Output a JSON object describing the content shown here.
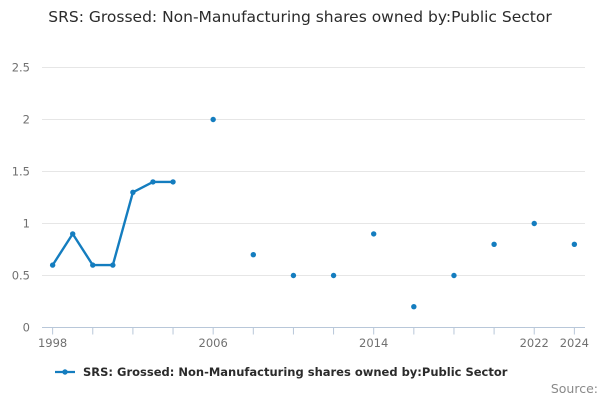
{
  "title": "SRS: Grossed: Non-Manufacturing shares owned by:Public Sector",
  "legend": {
    "label": "SRS: Grossed: Non-Manufacturing shares owned by:Public Sector"
  },
  "source_label": "Source:",
  "colors": {
    "series": "#147dbf",
    "grid": "#e6e6e6",
    "axis": "#b8c7d9",
    "tick_label": "#707070",
    "title_text": "#2b2b2b",
    "legend_text": "#2b2b2b",
    "source_text": "#8a8a8a",
    "background": "#ffffff"
  },
  "chart_data": {
    "type": "line",
    "title": "SRS: Grossed: Non-Manufacturing shares owned by:Public Sector",
    "xlabel": "",
    "ylabel": "",
    "xlim": [
      1997.47,
      2024.53
    ],
    "ylim": [
      0,
      2.5
    ],
    "y_ticks": [
      0,
      0.5,
      1,
      1.5,
      2,
      2.5
    ],
    "x_tick_start": 1998,
    "x_tick_end": 2024,
    "x_tick_step": 2,
    "x_tick_labels_shown": [
      "1998",
      "2006",
      "2014",
      "2022",
      "2024"
    ],
    "grid": "horizontal",
    "legend_position": "bottom-left",
    "connect_rule": "adjacent-years-only",
    "series": [
      {
        "name": "SRS: Grossed: Non-Manufacturing shares owned by:Public Sector",
        "points": [
          [
            1998,
            0.6
          ],
          [
            1999,
            0.9
          ],
          [
            2000,
            0.6
          ],
          [
            2001,
            0.6
          ],
          [
            2002,
            1.3
          ],
          [
            2003,
            1.4
          ],
          [
            2004,
            1.4
          ],
          [
            2006,
            2.0
          ],
          [
            2008,
            0.7
          ],
          [
            2010,
            0.5
          ],
          [
            2012,
            0.5
          ],
          [
            2014,
            0.9
          ],
          [
            2016,
            0.2
          ],
          [
            2018,
            0.5
          ],
          [
            2020,
            0.8
          ],
          [
            2022,
            1.0
          ],
          [
            2024,
            0.8
          ]
        ]
      }
    ]
  }
}
